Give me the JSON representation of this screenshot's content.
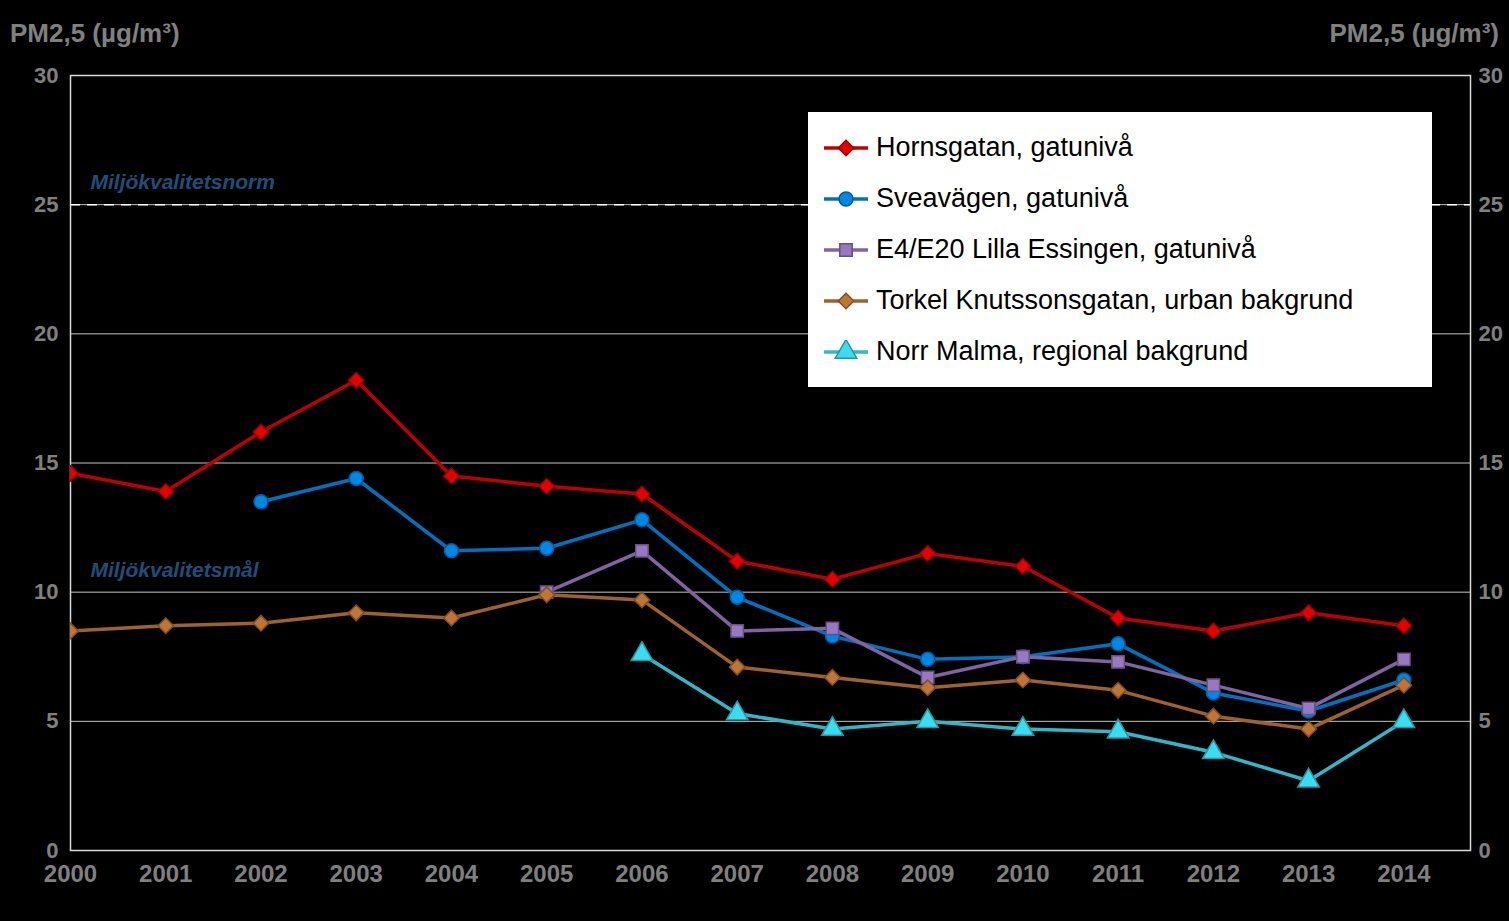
{
  "chart_data": {
    "type": "line",
    "y_label": "PM2,5 (µg/m³)",
    "y2_label": "PM2,5 (µg/m³)",
    "x": [
      2000,
      2001,
      2002,
      2003,
      2004,
      2005,
      2006,
      2007,
      2008,
      2009,
      2010,
      2011,
      2012,
      2013,
      2014
    ],
    "xlim": [
      2000,
      2014.7
    ],
    "xticks": [
      2000,
      2001,
      2002,
      2003,
      2004,
      2005,
      2006,
      2007,
      2008,
      2009,
      2010,
      2011,
      2012,
      2013,
      2014
    ],
    "ylim": [
      0,
      30
    ],
    "yticks": [
      0,
      5,
      10,
      15,
      20,
      25,
      30
    ],
    "y2lim": [
      0,
      30
    ],
    "y2ticks": [
      0,
      5,
      10,
      15,
      20,
      25,
      30
    ],
    "grid": true,
    "legend": "top-right",
    "annotations": [
      {
        "text": "Miljökvalitetsnorm",
        "y": 25,
        "line_style": "dashed"
      },
      {
        "text": "Miljökvalitetsmål",
        "y": 10
      }
    ],
    "series": [
      {
        "name": "Hornsgatan, gatunivå",
        "color": "#c00000",
        "marker": "diamond",
        "values": [
          14.6,
          13.9,
          16.2,
          18.2,
          14.5,
          14.1,
          13.8,
          11.2,
          10.5,
          11.5,
          11.0,
          9.0,
          8.5,
          9.2,
          8.7
        ]
      },
      {
        "name": "Sveavägen, gatunivå",
        "color": "#0070c0",
        "marker": "circle",
        "values": [
          null,
          null,
          13.5,
          14.4,
          11.6,
          11.7,
          12.8,
          9.8,
          8.3,
          7.4,
          7.5,
          8.0,
          6.1,
          5.4,
          6.6
        ]
      },
      {
        "name": "E4/E20 Lilla Essingen, gatunivå",
        "color": "#8064a2",
        "marker": "square",
        "values": [
          null,
          null,
          null,
          null,
          null,
          10.0,
          11.6,
          8.5,
          8.6,
          6.7,
          7.5,
          7.3,
          6.4,
          5.5,
          7.4
        ]
      },
      {
        "name": "Torkel Knutssonsgatan, urban bakgrund",
        "color": "#a0622d",
        "marker": "diamond",
        "values": [
          8.5,
          8.7,
          8.8,
          9.2,
          9.0,
          9.9,
          9.7,
          7.1,
          6.7,
          6.3,
          6.6,
          6.2,
          5.2,
          4.7,
          6.4
        ]
      },
      {
        "name": "Norr Malma, regional bakgrund",
        "color": "#31b8c8",
        "marker": "triangle",
        "values": [
          null,
          null,
          null,
          null,
          null,
          null,
          7.6,
          5.3,
          4.7,
          5.0,
          4.7,
          4.6,
          3.8,
          2.7,
          5.0
        ]
      }
    ]
  }
}
